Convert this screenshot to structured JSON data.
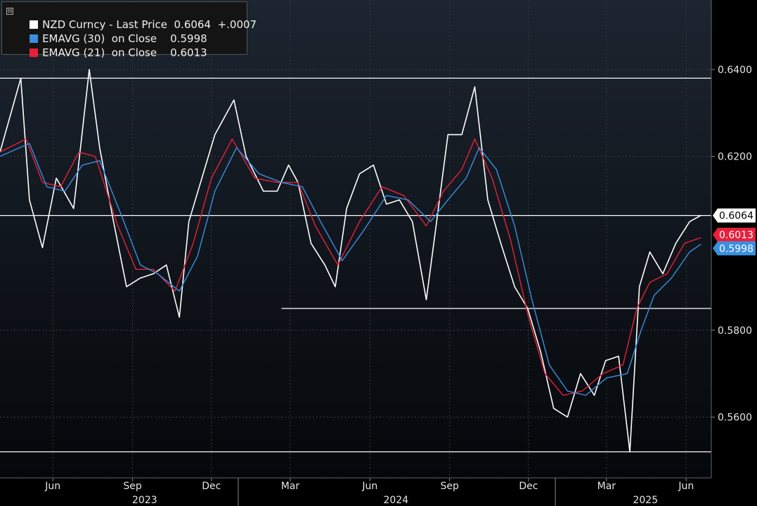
{
  "legend": {
    "toggle": "⊟",
    "rows": [
      {
        "label": "NZD Curncy - Last Price",
        "value": "0.6064",
        "change": "+.0007",
        "color": "#ffffff"
      },
      {
        "label": "EMAVG (30)  on Close",
        "value": "0.5998",
        "change": "",
        "color": "#3a8fe0"
      },
      {
        "label": "EMAVG (21)  on Close",
        "value": "0.6013",
        "change": "",
        "color": "#e8203a"
      }
    ]
  },
  "chart_data": {
    "type": "line",
    "series": [
      {
        "name": "NZD Curncy - Last Price",
        "color": "#ffffff",
        "x": [
          "2023-04-01",
          "2023-04-25",
          "2023-05-05",
          "2023-05-20",
          "2023-06-05",
          "2023-06-25",
          "2023-07-13",
          "2023-07-25",
          "2023-08-10",
          "2023-08-25",
          "2023-09-10",
          "2023-09-25",
          "2023-10-10",
          "2023-10-25",
          "2023-11-05",
          "2023-11-20",
          "2023-12-05",
          "2023-12-27",
          "2024-01-10",
          "2024-01-30",
          "2024-02-15",
          "2024-02-28",
          "2024-03-10",
          "2024-03-25",
          "2024-04-10",
          "2024-04-22",
          "2024-05-05",
          "2024-05-20",
          "2024-06-05",
          "2024-06-20",
          "2024-07-05",
          "2024-07-20",
          "2024-08-05",
          "2024-08-15",
          "2024-08-30",
          "2024-09-15",
          "2024-09-30",
          "2024-10-15",
          "2024-10-30",
          "2024-11-15",
          "2024-11-30",
          "2024-12-15",
          "2024-12-30",
          "2025-01-15",
          "2025-01-30",
          "2025-02-15",
          "2025-02-28",
          "2025-03-15",
          "2025-03-28",
          "2025-04-08",
          "2025-04-20",
          "2025-05-05",
          "2025-05-20",
          "2025-06-05",
          "2025-06-18"
        ],
        "y": [
          0.621,
          0.638,
          0.61,
          0.599,
          0.615,
          0.608,
          0.64,
          0.622,
          0.605,
          0.59,
          0.592,
          0.593,
          0.595,
          0.583,
          0.605,
          0.615,
          0.625,
          0.633,
          0.62,
          0.612,
          0.612,
          0.618,
          0.614,
          0.6,
          0.595,
          0.59,
          0.608,
          0.616,
          0.618,
          0.609,
          0.61,
          0.605,
          0.587,
          0.602,
          0.625,
          0.625,
          0.636,
          0.61,
          0.6,
          0.59,
          0.585,
          0.575,
          0.562,
          0.56,
          0.57,
          0.565,
          0.573,
          0.574,
          0.552,
          0.59,
          0.598,
          0.593,
          0.6,
          0.605,
          0.6064
        ]
      },
      {
        "name": "EMAVG (21) on Close",
        "color": "#e8203a",
        "x": [
          "2023-04-01",
          "2023-05-01",
          "2023-05-20",
          "2023-06-10",
          "2023-07-01",
          "2023-07-20",
          "2023-08-15",
          "2023-09-05",
          "2023-09-25",
          "2023-10-20",
          "2023-11-10",
          "2023-12-01",
          "2023-12-25",
          "2024-01-20",
          "2024-02-15",
          "2024-03-10",
          "2024-03-30",
          "2024-04-25",
          "2024-05-20",
          "2024-06-15",
          "2024-07-10",
          "2024-08-05",
          "2024-08-25",
          "2024-09-15",
          "2024-09-30",
          "2024-10-20",
          "2024-11-10",
          "2024-12-01",
          "2024-12-20",
          "2025-01-10",
          "2025-02-01",
          "2025-02-25",
          "2025-03-20",
          "2025-04-05",
          "2025-04-20",
          "2025-05-10",
          "2025-05-30",
          "2025-06-18"
        ],
        "y": [
          0.621,
          0.624,
          0.614,
          0.613,
          0.621,
          0.62,
          0.604,
          0.594,
          0.594,
          0.589,
          0.6,
          0.615,
          0.624,
          0.615,
          0.614,
          0.614,
          0.604,
          0.595,
          0.605,
          0.613,
          0.611,
          0.604,
          0.612,
          0.617,
          0.624,
          0.615,
          0.601,
          0.583,
          0.57,
          0.565,
          0.566,
          0.57,
          0.572,
          0.585,
          0.591,
          0.593,
          0.6,
          0.6013
        ]
      },
      {
        "name": "EMAVG (30) on Close",
        "color": "#3a8fe0",
        "x": [
          "2023-04-01",
          "2023-05-05",
          "2023-05-25",
          "2023-06-15",
          "2023-07-05",
          "2023-07-25",
          "2023-08-20",
          "2023-09-10",
          "2023-09-30",
          "2023-10-25",
          "2023-11-15",
          "2023-12-05",
          "2023-12-30",
          "2024-01-25",
          "2024-02-20",
          "2024-03-15",
          "2024-04-05",
          "2024-04-30",
          "2024-05-25",
          "2024-06-20",
          "2024-07-15",
          "2024-08-10",
          "2024-08-30",
          "2024-09-20",
          "2024-10-05",
          "2024-10-25",
          "2024-11-15",
          "2024-12-05",
          "2024-12-25",
          "2025-01-15",
          "2025-02-05",
          "2025-03-01",
          "2025-03-25",
          "2025-04-10",
          "2025-04-25",
          "2025-05-15",
          "2025-06-05",
          "2025-06-18"
        ],
        "y": [
          0.62,
          0.623,
          0.613,
          0.612,
          0.618,
          0.619,
          0.606,
          0.595,
          0.593,
          0.589,
          0.597,
          0.612,
          0.622,
          0.616,
          0.614,
          0.613,
          0.605,
          0.596,
          0.603,
          0.611,
          0.61,
          0.605,
          0.61,
          0.615,
          0.622,
          0.617,
          0.604,
          0.587,
          0.572,
          0.566,
          0.565,
          0.569,
          0.57,
          0.58,
          0.588,
          0.592,
          0.598,
          0.5998
        ]
      }
    ],
    "ylim": [
      0.546,
      0.656
    ],
    "xlim": [
      "2023-04-01",
      "2025-06-30"
    ],
    "yticks": [
      0.56,
      0.58,
      0.62,
      0.64
    ],
    "ytick_labels": [
      "0.5600",
      "0.5800",
      "0.6200",
      "0.6400"
    ],
    "xticks": [
      {
        "date": "2023-06-01",
        "label": "Jun"
      },
      {
        "date": "2023-09-01",
        "label": "Sep"
      },
      {
        "date": "2023-12-01",
        "label": "Dec"
      },
      {
        "date": "2024-03-01",
        "label": "Mar"
      },
      {
        "date": "2024-06-01",
        "label": "Jun"
      },
      {
        "date": "2024-09-01",
        "label": "Sep"
      },
      {
        "date": "2024-12-01",
        "label": "Dec"
      },
      {
        "date": "2025-03-01",
        "label": "Mar"
      },
      {
        "date": "2025-06-01",
        "label": "Jun"
      }
    ],
    "year_labels": [
      {
        "date": "2023-09-15",
        "label": "2023"
      },
      {
        "date": "2024-07-01",
        "label": "2024"
      },
      {
        "date": "2025-04-15",
        "label": "2025"
      }
    ],
    "year_separators": [
      "2024-01-01",
      "2025-01-01"
    ],
    "hlines": [
      {
        "y": 0.638,
        "from": "2023-04-01"
      },
      {
        "y": 0.6064,
        "from": "2023-04-01"
      },
      {
        "y": 0.585,
        "from": "2024-02-20"
      },
      {
        "y": 0.552,
        "from": "2023-04-01"
      }
    ],
    "last_values": [
      {
        "value": "0.6064",
        "y": 0.6064,
        "bg": "#ffffff",
        "fg": "#000000"
      },
      {
        "value": "0.6013",
        "y": 0.6013,
        "bg": "#e8203a",
        "fg": "#ffffff"
      },
      {
        "value": "0.5998",
        "y": 0.5998,
        "bg": "#3a8fe0",
        "fg": "#ffffff"
      }
    ],
    "grid": true,
    "legend_position": "top-left"
  }
}
